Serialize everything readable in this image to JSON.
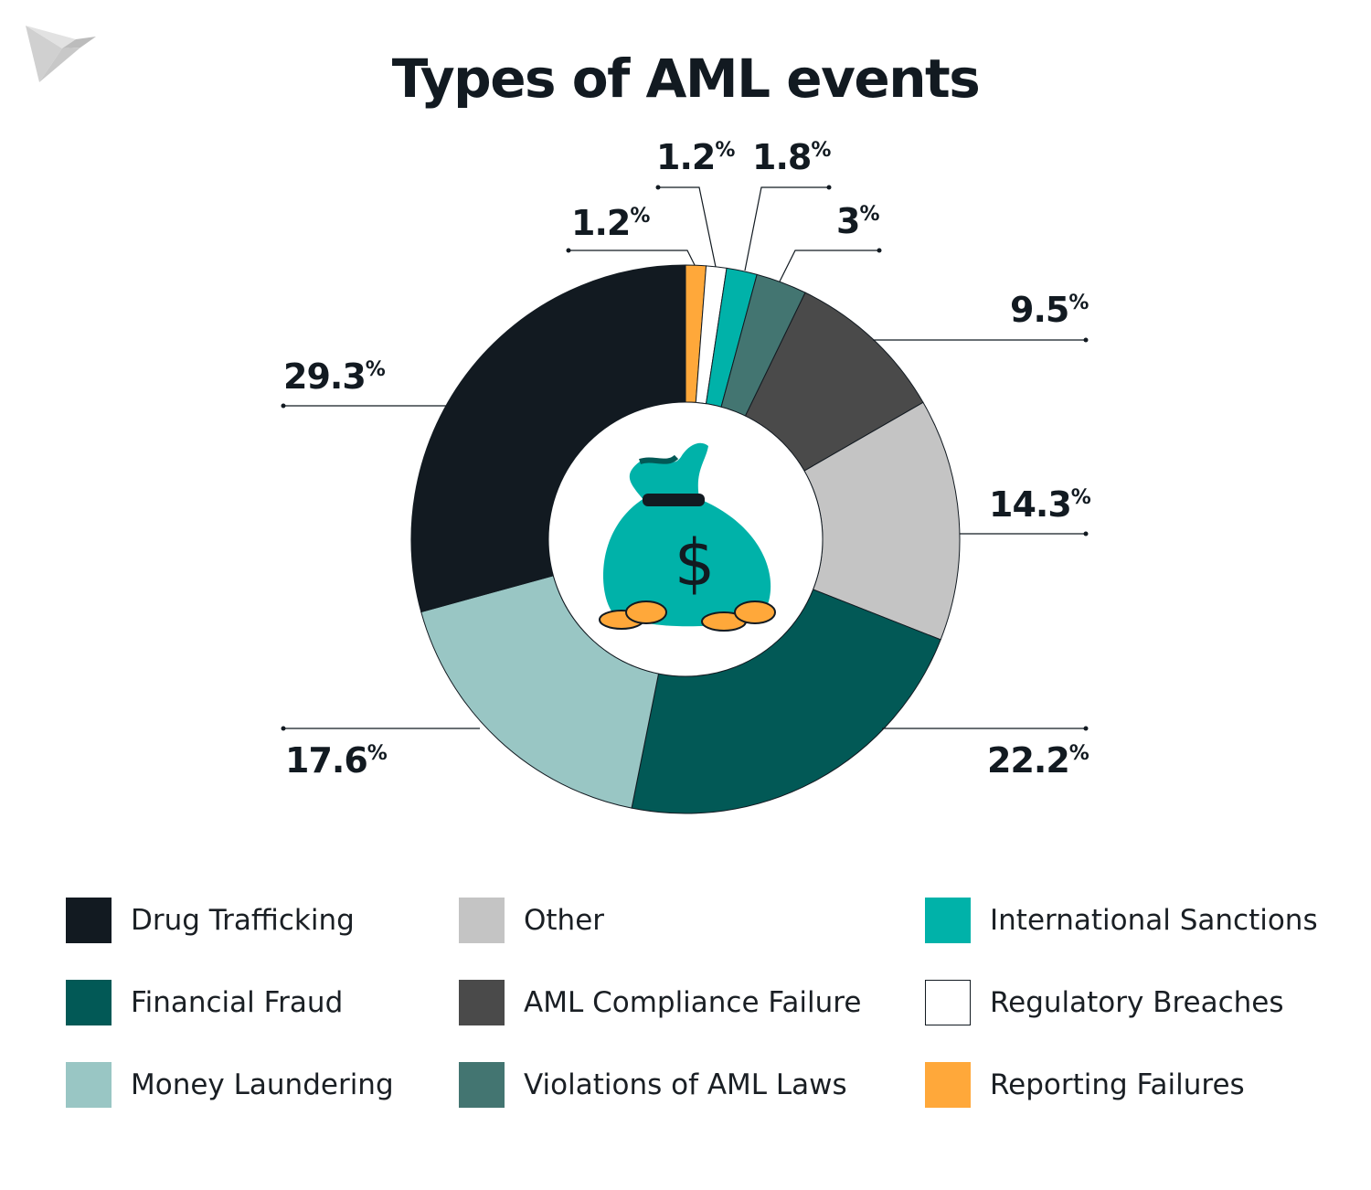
{
  "chart_data": {
    "type": "pie",
    "variant": "donut",
    "title": "Types of AML events",
    "unit": "%",
    "legend_position": "bottom",
    "slices": [
      {
        "name": "Reporting Failures",
        "value": 1.2,
        "color": "#FFA83A"
      },
      {
        "name": "Regulatory Breaches",
        "value": 1.2,
        "color": "#FFFFFF"
      },
      {
        "name": "International Sanctions",
        "value": 1.8,
        "color": "#00B2A9"
      },
      {
        "name": "Violations of AML Laws",
        "value": 3,
        "color": "#437571"
      },
      {
        "name": "AML Compliance Failure",
        "value": 9.5,
        "color": "#4A4A4A"
      },
      {
        "name": "Other",
        "value": 14.3,
        "color": "#C4C4C4"
      },
      {
        "name": "Financial Fraud",
        "value": 22.2,
        "color": "#025956"
      },
      {
        "name": "Money Laundering",
        "value": 17.6,
        "color": "#99C6C4"
      },
      {
        "name": "Drug Trafficking",
        "value": 29.3,
        "color": "#121A21"
      }
    ],
    "legend_order": [
      "Drug Trafficking",
      "Financial Fraud",
      "Money Laundering",
      "Other",
      "AML Compliance Failure",
      "Violations of AML Laws",
      "International Sanctions",
      "Regulatory Breaches",
      "Reporting Failures"
    ]
  },
  "center_icon": "money-bag-icon",
  "logo_icon": "origami-bird-logo"
}
